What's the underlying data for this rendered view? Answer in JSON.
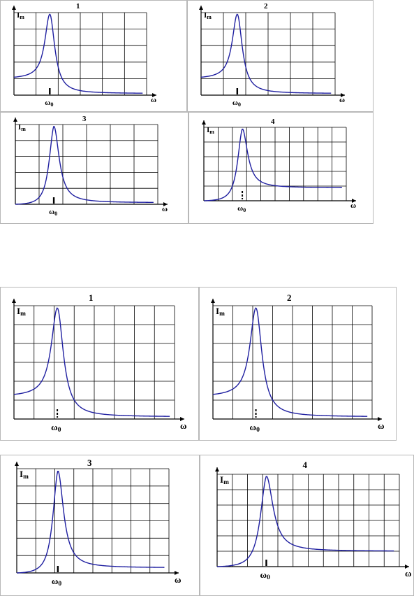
{
  "chart_data": [
    {
      "type": "line",
      "title": "1",
      "ylabel": "Im",
      "xlabel": "ω",
      "marker_label": "ω0",
      "peak_x": 0.27,
      "peak_y": 1.0,
      "left_y": 0.2,
      "right_y": 0.02,
      "grid": true
    },
    {
      "type": "line",
      "title": "2",
      "ylabel": "Im",
      "xlabel": "ω",
      "marker_label": "ω0",
      "peak_x": 0.27,
      "peak_y": 1.0,
      "left_y": 0.2,
      "right_y": 0.02,
      "grid": true
    },
    {
      "type": "line",
      "title": "3",
      "ylabel": "Im",
      "xlabel": "ω",
      "marker_label": "ω0",
      "peak_x": 0.27,
      "peak_y": 1.0,
      "left_y": 0.0,
      "right_y": 0.02,
      "grid": true
    },
    {
      "type": "line",
      "title": "4",
      "ylabel": "Im",
      "xlabel": "ω",
      "marker_label": "ω0",
      "peak_x": 0.27,
      "peak_y": 1.0,
      "left_y": 0.0,
      "right_y": 0.18,
      "grid": true
    },
    {
      "type": "line",
      "title": "1",
      "ylabel": "Im",
      "xlabel": "ω",
      "marker_label": "ω0",
      "peak_x": 0.27,
      "peak_y": 1.0,
      "left_y": 0.2,
      "right_y": 0.02,
      "grid": true
    },
    {
      "type": "line",
      "title": "2",
      "ylabel": "Im",
      "xlabel": "ω",
      "marker_label": "ω0",
      "peak_x": 0.27,
      "peak_y": 1.0,
      "left_y": 0.2,
      "right_y": 0.02,
      "grid": true
    },
    {
      "type": "line",
      "title": "3",
      "ylabel": "Im",
      "xlabel": "ω",
      "marker_label": "ω0",
      "peak_x": 0.27,
      "peak_y": 1.0,
      "left_y": 0.0,
      "right_y": 0.05,
      "grid": true
    },
    {
      "type": "line",
      "title": "4",
      "ylabel": "Im",
      "xlabel": "ω",
      "marker_label": "ω0",
      "peak_x": 0.27,
      "peak_y": 1.0,
      "left_y": 0.0,
      "right_y": 0.17,
      "grid": true
    }
  ],
  "colors": {
    "curve": "#1f1fa0",
    "grid": "#000000",
    "frame": "#555555"
  }
}
